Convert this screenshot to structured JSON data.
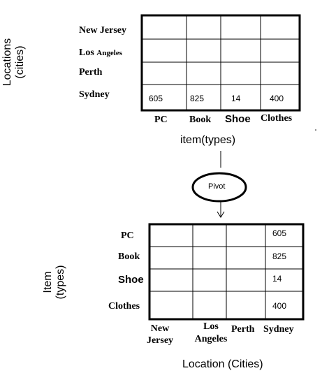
{
  "top_table": {
    "axis_label_left": [
      "Locations",
      "(cities)"
    ],
    "row_labels": [
      "New Jersey",
      "Los",
      "Angeles",
      "Perth",
      "Sydney"
    ],
    "col_labels": [
      "PC",
      "Book",
      "Shoe",
      "Clothes"
    ],
    "axis_label_bottom": "item(types)",
    "values": [
      "605",
      "825",
      "14",
      "400"
    ]
  },
  "pivot": {
    "label": "Pivot"
  },
  "bottom_table": {
    "axis_label_left": [
      "Item",
      "(types)"
    ],
    "row_labels": [
      "PC",
      "Book",
      "Shoe",
      "Clothes"
    ],
    "col_labels": [
      "New",
      "Jersey",
      "Los",
      "Angeles",
      "Perth",
      "Sydney"
    ],
    "axis_label_bottom": "Location (Cities)",
    "values": [
      "605",
      "825",
      "14",
      "400"
    ]
  }
}
